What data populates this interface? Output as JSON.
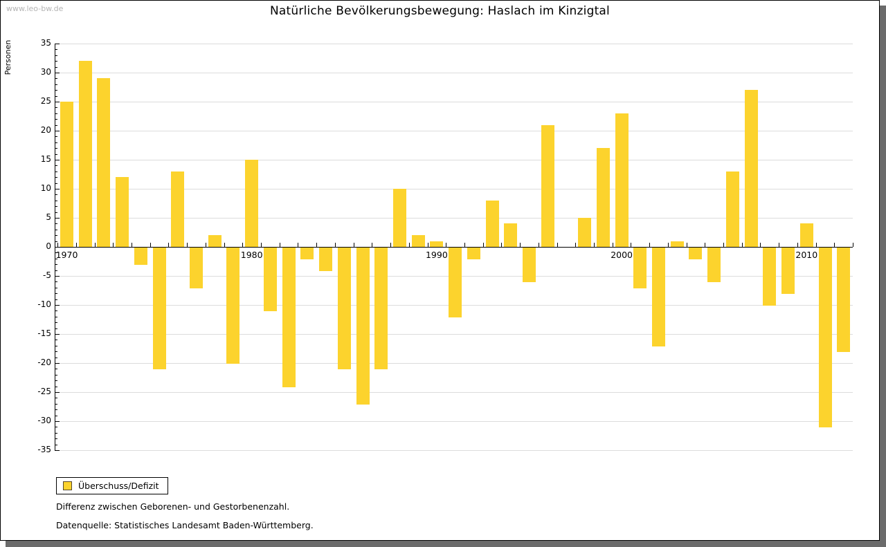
{
  "watermark": "www.leo-bw.de",
  "title": "Natürliche Bevölkerungsbewegung: Haslach im Kinzigtal",
  "y_axis_label": "Personen",
  "legend": {
    "label": "Überschuss/Defizit"
  },
  "footnotes": [
    "Differenz zwischen Geborenen- und Gestorbenenzahl.",
    "Datenquelle: Statistisches Landesamt Baden-Württemberg."
  ],
  "colors": {
    "bar": "#fcd32d",
    "grid": "#dcdcdc",
    "axis": "#000000",
    "window_shadow": "#6b6b6b",
    "watermark": "#b4b4b4"
  },
  "chart_data": {
    "type": "bar",
    "title": "Natürliche Bevölkerungsbewegung: Haslach im Kinzigtal",
    "xlabel": "",
    "ylabel": "Personen",
    "ylim": [
      -35,
      35
    ],
    "y_tick_major_step": 5,
    "y_tick_minor_step": 1,
    "grid": true,
    "legend_position": "bottom-left",
    "x_decade_labels": [
      1970,
      1980,
      1990,
      2000,
      2010
    ],
    "series": [
      {
        "name": "Überschuss/Defizit",
        "x": [
          1970,
          1971,
          1972,
          1973,
          1974,
          1975,
          1976,
          1977,
          1978,
          1979,
          1980,
          1981,
          1982,
          1983,
          1984,
          1985,
          1986,
          1987,
          1988,
          1989,
          1990,
          1991,
          1992,
          1993,
          1994,
          1995,
          1996,
          1997,
          1998,
          1999,
          2000,
          2001,
          2002,
          2003,
          2004,
          2005,
          2006,
          2007,
          2008,
          2009,
          2010,
          2011,
          2012
        ],
        "values": [
          25,
          32,
          29,
          12,
          -3,
          -21,
          13,
          -7,
          2,
          -20,
          15,
          -11,
          -24,
          -2,
          -4,
          -21,
          -27,
          -21,
          10,
          2,
          1,
          -12,
          -2,
          8,
          4,
          -6,
          21,
          0,
          5,
          17,
          23,
          -7,
          -17,
          1,
          -2,
          -6,
          13,
          27,
          -10,
          -8,
          4,
          -31,
          -18
        ]
      }
    ]
  }
}
